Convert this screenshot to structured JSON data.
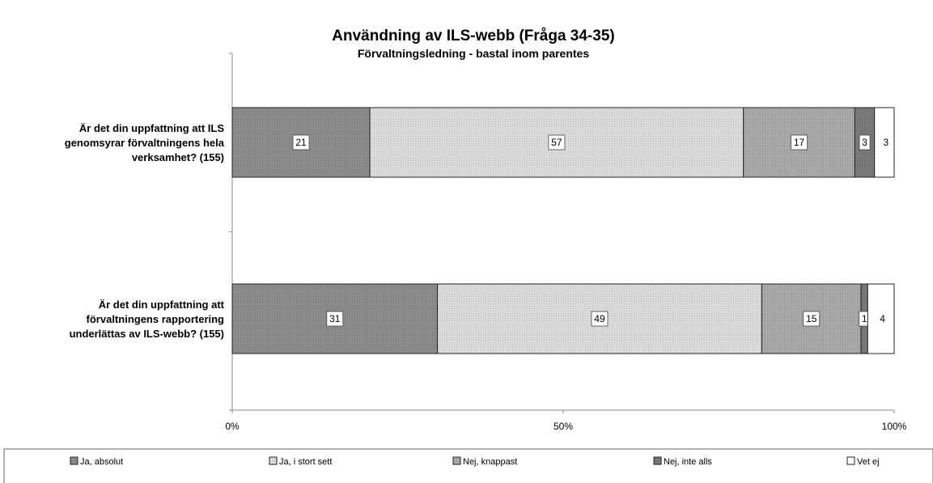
{
  "chart_data": {
    "type": "bar",
    "orientation": "horizontal",
    "stacked": "percent",
    "title": "Användning av ILS-webb (Fråga 34-35)",
    "subtitle": "Förvaltningsledning - bastal inom parentes",
    "categories": [
      [
        "Är det din uppfattning att ILS",
        "genomsyrar förvaltningens hela",
        "verksamhet? (155)"
      ],
      [
        "Är det din uppfattning att",
        "förvaltningens rapportering",
        "underlättas av ILS-webb? (155)"
      ]
    ],
    "series": [
      {
        "name": "Ja, absolut",
        "values": [
          21,
          31
        ],
        "color": "#8c8c8c"
      },
      {
        "name": "Ja, i stort sett",
        "values": [
          57,
          49
        ],
        "color": "#dcdcdc"
      },
      {
        "name": "Nej, knappast",
        "values": [
          17,
          15
        ],
        "color": "#a9a9a9"
      },
      {
        "name": "Nej, inte alls",
        "values": [
          3,
          1
        ],
        "color": "#7a7a7a"
      },
      {
        "name": "Vet ej",
        "values": [
          3,
          4
        ],
        "color": "#ffffff"
      }
    ],
    "xticks": [
      "0%",
      "50%",
      "100%"
    ],
    "xlim": [
      0,
      100
    ],
    "legend_position": "bottom",
    "grid": false
  }
}
